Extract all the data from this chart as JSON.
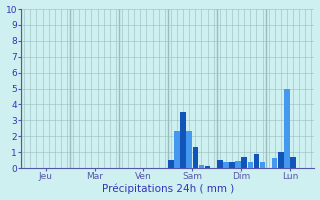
{
  "title": "Précipitations 24h ( mm )",
  "background_color": "#cff0f0",
  "bar_color_dark": "#1155bb",
  "bar_color_light": "#4499ee",
  "grid_color_h": "#aacece",
  "grid_color_v": "#99bbbb",
  "axis_color": "#6666bb",
  "text_color": "#3333bb",
  "spine_color": "#5555aa",
  "ylim": [
    0,
    10
  ],
  "yticks": [
    0,
    1,
    2,
    3,
    4,
    5,
    6,
    7,
    8,
    9,
    10
  ],
  "day_labels": [
    "Jeu",
    "Mar",
    "Ven",
    "Sam",
    "Dim",
    "Lun"
  ],
  "n_bars": 48,
  "bars_per_day": 8,
  "bar_values": [
    0,
    0,
    0,
    0,
    0,
    0,
    0,
    0,
    0,
    0,
    0,
    0,
    0,
    0,
    0,
    0,
    0,
    0,
    0,
    0,
    0,
    0,
    0,
    0,
    0.5,
    2.3,
    3.5,
    2.3,
    1.3,
    0.2,
    0.15,
    0,
    0.5,
    0.4,
    0.35,
    0.45,
    0.7,
    0.35,
    0.9,
    0.35,
    0,
    0.65,
    1.0,
    5.0,
    0.7,
    0,
    0,
    0
  ]
}
